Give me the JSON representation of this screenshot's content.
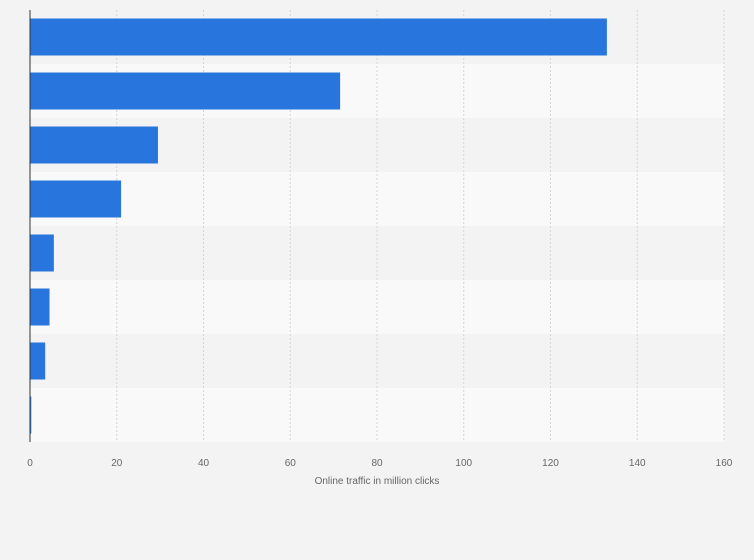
{
  "chart_data": {
    "type": "bar",
    "orientation": "horizontal",
    "categories": [
      "",
      "",
      "",
      "",
      "",
      "",
      "",
      ""
    ],
    "values": [
      133,
      71.5,
      29.5,
      21,
      5.5,
      4.5,
      3.5,
      0.3
    ],
    "title": "",
    "xlabel": "Online traffic in million clicks",
    "ylabel": "",
    "xlim": [
      0,
      160
    ],
    "xticks": [
      "0",
      "20",
      "40",
      "60",
      "80",
      "100",
      "120",
      "140",
      "160"
    ],
    "grid": true,
    "legend": "none",
    "colors": {
      "bar": "#2876dd",
      "row_band_dark": "#f3f3f3",
      "row_band_light": "#f9f9f9",
      "gridline": "#d6d6d6",
      "axis": "#333333"
    }
  }
}
